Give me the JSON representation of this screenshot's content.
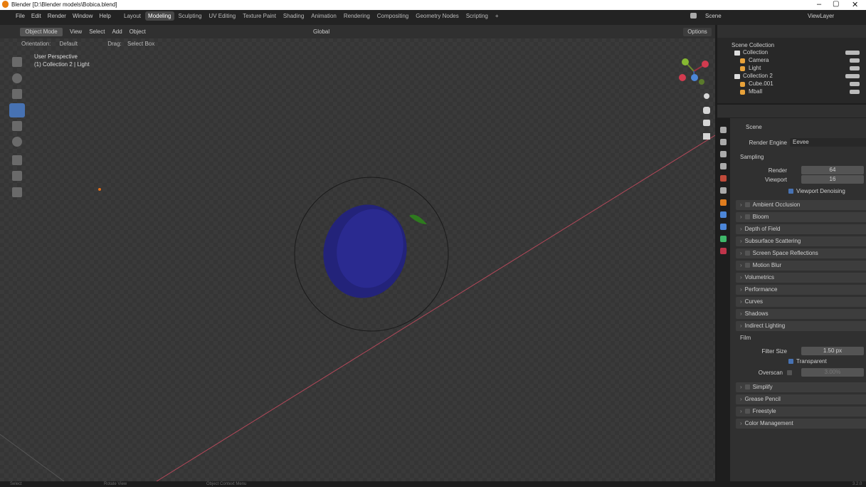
{
  "title_bar": {
    "title": "Blender [D:\\Blender models\\Bobica.blend]"
  },
  "menu": [
    "File",
    "Edit",
    "Render",
    "Window",
    "Help"
  ],
  "workspaces": {
    "tabs": [
      "Layout",
      "Modeling",
      "Sculpting",
      "UV Editing",
      "Texture Paint",
      "Shading",
      "Animation",
      "Rendering",
      "Compositing",
      "Geometry Nodes",
      "Scripting",
      "+"
    ],
    "active_index": 1
  },
  "scene": "Scene",
  "view_layer": "ViewLayer",
  "header": {
    "mode": "Object Mode",
    "menus": [
      "View",
      "Select",
      "Add",
      "Object"
    ],
    "transform": "Global",
    "options": "Options"
  },
  "tool_settings": {
    "orientation_label": "Orientation:",
    "orientation": "Default",
    "drag_label": "Drag:",
    "drag": "Select Box"
  },
  "viewport": {
    "perspective": "User Perspective",
    "context": "(1) Collection 2 | Light"
  },
  "outliner": {
    "root": "Scene Collection",
    "collections": [
      {
        "name": "Collection",
        "children": [
          "Camera",
          "Light"
        ]
      },
      {
        "name": "Collection 2",
        "children": [
          "Cube.001",
          "Mball"
        ]
      }
    ]
  },
  "properties": {
    "context": "Scene",
    "render_engine_label": "Render Engine",
    "render_engine": "Eevee",
    "sampling": {
      "title": "Sampling",
      "render_label": "Render",
      "render": 64,
      "viewport_label": "Viewport",
      "viewport": 16,
      "denoising": "Viewport Denoising"
    },
    "panels_before_film": [
      {
        "title": "Ambient Occlusion",
        "checkbox": true
      },
      {
        "title": "Bloom",
        "checkbox": true
      },
      {
        "title": "Depth of Field",
        "checkbox": false
      },
      {
        "title": "Subsurface Scattering",
        "checkbox": false
      },
      {
        "title": "Screen Space Reflections",
        "checkbox": true
      },
      {
        "title": "Motion Blur",
        "checkbox": true
      },
      {
        "title": "Volumetrics",
        "checkbox": false
      },
      {
        "title": "Performance",
        "checkbox": false
      },
      {
        "title": "Curves",
        "checkbox": false
      },
      {
        "title": "Shadows",
        "checkbox": false
      },
      {
        "title": "Indirect Lighting",
        "checkbox": false
      }
    ],
    "film": {
      "title": "Film",
      "filter_size_label": "Filter Size",
      "filter_size": "1.50 px",
      "transparent": "Transparent",
      "overscan_label": "Overscan",
      "overscan": "3.00%"
    },
    "panels_after_film": [
      {
        "title": "Simplify",
        "checkbox": true
      },
      {
        "title": "Grease Pencil",
        "checkbox": false
      },
      {
        "title": "Freestyle",
        "checkbox": true
      },
      {
        "title": "Color Management",
        "checkbox": false
      }
    ]
  },
  "status_bar": {
    "items": [
      "Select",
      "Rotate View",
      "Object Context Menu"
    ],
    "version": "3.2.0"
  }
}
